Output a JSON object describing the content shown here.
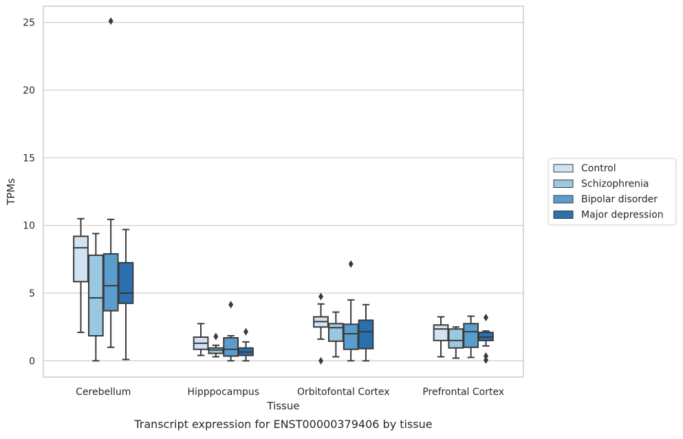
{
  "chart_data": {
    "type": "box",
    "caption": "Transcript expression for ENST00000379406 by tissue",
    "xlabel": "Tissue",
    "ylabel": "TPMs",
    "ylim": [
      -1.2,
      26.2
    ],
    "yticks": [
      0,
      5,
      10,
      15,
      20,
      25
    ],
    "grid": true,
    "legend_position": "right",
    "categories": [
      "Cerebellum",
      "Hipppocampus",
      "Orbitofontal Cortex",
      "Prefrontal Cortex"
    ],
    "series": [
      {
        "name": "Control",
        "color": "#d1e2f2",
        "boxes": [
          {
            "whisker_low": 2.1,
            "q1": 5.85,
            "median": 8.35,
            "q3": 9.2,
            "whisker_high": 10.5,
            "outliers": []
          },
          {
            "whisker_low": 0.4,
            "q1": 0.85,
            "median": 1.3,
            "q3": 1.75,
            "whisker_high": 2.75,
            "outliers": []
          },
          {
            "whisker_low": 1.6,
            "q1": 2.5,
            "median": 2.9,
            "q3": 3.25,
            "whisker_high": 4.2,
            "outliers": [
              4.75,
              0.0
            ]
          },
          {
            "whisker_low": 0.3,
            "q1": 1.5,
            "median": 2.35,
            "q3": 2.65,
            "whisker_high": 3.25,
            "outliers": []
          }
        ]
      },
      {
        "name": "Schizophrenia",
        "color": "#9ac8e0",
        "boxes": [
          {
            "whisker_low": 0.0,
            "q1": 1.85,
            "median": 4.65,
            "q3": 7.8,
            "whisker_high": 9.4,
            "outliers": []
          },
          {
            "whisker_low": 0.3,
            "q1": 0.55,
            "median": 0.8,
            "q3": 0.95,
            "whisker_high": 1.15,
            "outliers": [
              1.8
            ]
          },
          {
            "whisker_low": 0.3,
            "q1": 1.45,
            "median": 2.45,
            "q3": 2.75,
            "whisker_high": 3.6,
            "outliers": []
          },
          {
            "whisker_low": 0.2,
            "q1": 0.95,
            "median": 1.5,
            "q3": 2.35,
            "whisker_high": 2.5,
            "outliers": []
          }
        ]
      },
      {
        "name": "Bipolar disorder",
        "color": "#5a9dcd",
        "boxes": [
          {
            "whisker_low": 1.0,
            "q1": 3.7,
            "median": 5.55,
            "q3": 7.9,
            "whisker_high": 10.45,
            "outliers": [
              25.1
            ]
          },
          {
            "whisker_low": 0.0,
            "q1": 0.35,
            "median": 0.85,
            "q3": 1.7,
            "whisker_high": 1.85,
            "outliers": [
              4.15
            ]
          },
          {
            "whisker_low": 0.0,
            "q1": 0.85,
            "median": 2.0,
            "q3": 2.7,
            "whisker_high": 4.5,
            "outliers": [
              7.15
            ]
          },
          {
            "whisker_low": 0.25,
            "q1": 1.0,
            "median": 2.15,
            "q3": 2.75,
            "whisker_high": 3.3,
            "outliers": []
          }
        ]
      },
      {
        "name": "Major depression",
        "color": "#2a6fae",
        "boxes": [
          {
            "whisker_low": 0.1,
            "q1": 4.25,
            "median": 5.0,
            "q3": 7.25,
            "whisker_high": 9.7,
            "outliers": []
          },
          {
            "whisker_low": 0.0,
            "q1": 0.4,
            "median": 0.65,
            "q3": 0.95,
            "whisker_high": 1.4,
            "outliers": [
              2.15
            ]
          },
          {
            "whisker_low": 0.0,
            "q1": 0.9,
            "median": 2.15,
            "q3": 3.0,
            "whisker_high": 4.15,
            "outliers": []
          },
          {
            "whisker_low": 1.1,
            "q1": 1.5,
            "median": 1.75,
            "q3": 2.1,
            "whisker_high": 2.2,
            "outliers": [
              3.2,
              0.35,
              0.05
            ]
          }
        ]
      }
    ]
  }
}
